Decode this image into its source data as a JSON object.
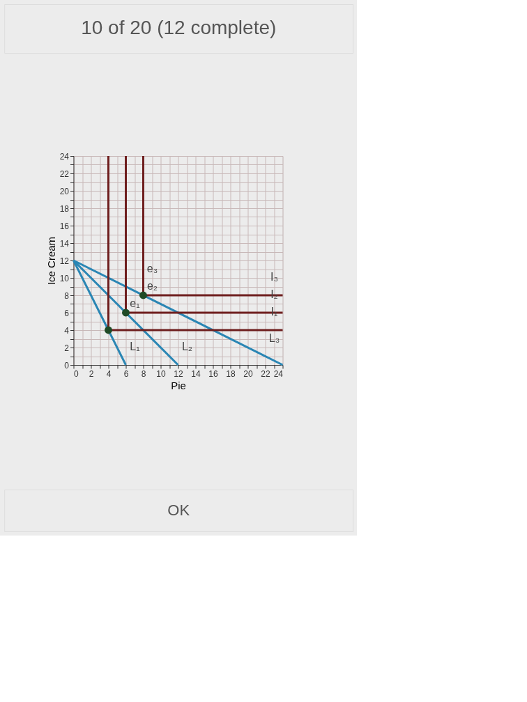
{
  "chart_data": {
    "type": "line",
    "xlabel": "Pie",
    "ylabel": "Ice Cream",
    "xlim": [
      0,
      24
    ],
    "ylim": [
      0,
      24
    ],
    "xticks": [
      0,
      {
        "value": 1,
        "label": null
      },
      2,
      {
        "value": 3,
        "label": null
      },
      4,
      {
        "value": 5,
        "label": null
      },
      6,
      {
        "value": 7,
        "label": null
      },
      8,
      {
        "value": 9,
        "label": null
      },
      10,
      {
        "value": 11,
        "label": null
      },
      12,
      {
        "value": 13,
        "label": null
      },
      14,
      {
        "value": 15,
        "label": null
      },
      16,
      {
        "value": 17,
        "label": null
      },
      18,
      {
        "value": 19,
        "label": null
      },
      20,
      {
        "value": 21,
        "label": null
      },
      22,
      {
        "value": 23,
        "label": null
      },
      24
    ],
    "yticks": [
      0,
      {
        "value": 1,
        "label": null
      },
      2,
      {
        "value": 3,
        "label": null
      },
      4,
      {
        "value": 5,
        "label": null
      },
      6,
      {
        "value": 7,
        "label": null
      },
      8,
      {
        "value": 9,
        "label": null
      },
      10,
      {
        "value": 11,
        "label": null
      },
      12,
      {
        "value": 13,
        "label": null
      },
      14,
      {
        "value": 15,
        "label": null
      },
      16,
      {
        "value": 17,
        "label": null
      },
      18,
      {
        "value": 19,
        "label": null
      },
      20,
      {
        "value": 21,
        "label": null
      },
      22,
      {
        "value": 23,
        "label": null
      },
      24
    ],
    "grid": true,
    "line_style": "solid",
    "series": [
      {
        "color": "#2a86b4",
        "x": [
          0,
          6
        ],
        "values": [
          12,
          0
        ]
      },
      {
        "color": "#2a86b4",
        "x": [
          0,
          12
        ],
        "values": [
          12,
          0
        ]
      },
      {
        "color": "#2a86b4",
        "x": [
          0,
          24
        ],
        "values": [
          12,
          0
        ]
      },
      {
        "color": "#6e1e1e",
        "x": [
          4,
          4,
          24
        ],
        "values": [
          24,
          4,
          4
        ]
      },
      {
        "color": "#6e1e1e",
        "x": [
          6,
          6,
          24
        ],
        "values": [
          24,
          6,
          6
        ]
      },
      {
        "color": "#6e1e1e",
        "x": [
          8,
          8,
          24
        ],
        "values": [
          24,
          8,
          8
        ]
      },
      {
        "type": "scatter",
        "color": "#1f4a26",
        "x": [
          4,
          6,
          8
        ],
        "values": [
          4,
          6,
          8
        ]
      }
    ],
    "annotations": [
      "10 of 20 (12 complete)",
      "OK",
      {
        "text": "e₁",
        "x": 6,
        "y": 6
      },
      {
        "text": "e₂",
        "x": 8,
        "y": 8
      },
      {
        "text": "e₃",
        "x": 8,
        "y": 9
      },
      {
        "text": "L₁",
        "x": 6,
        "y": 0
      },
      {
        "text": "L₂",
        "x": 12,
        "y": 0
      },
      {
        "text": "L₃",
        "x": 22,
        "y": 1
      },
      {
        "text": "I₁",
        "x": 22,
        "y": 4
      },
      {
        "text": "I₂",
        "x": 22,
        "y": 6
      },
      {
        "text": "I₃",
        "x": 22,
        "y": 8
      }
    ]
  }
}
